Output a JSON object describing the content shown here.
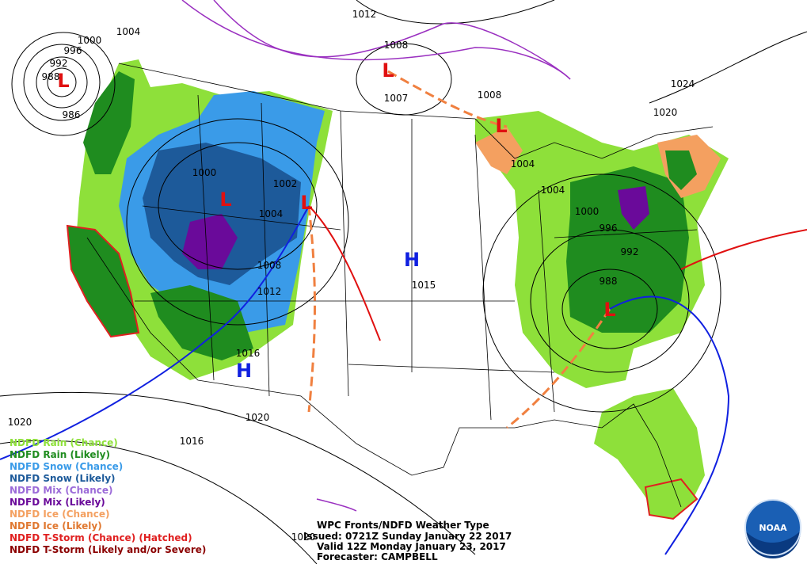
{
  "legend": [
    {
      "label": "NDFD Rain (Chance)",
      "color": "#8ee03a"
    },
    {
      "label": "NDFD Rain (Likely)",
      "color": "#1f8c1f"
    },
    {
      "label": "NDFD Snow (Chance)",
      "color": "#3a9be8"
    },
    {
      "label": "NDFD Snow (Likely)",
      "color": "#1d5a9a"
    },
    {
      "label": "NDFD Mix (Chance)",
      "color": "#9b6ad8"
    },
    {
      "label": "NDFD Mix (Likely)",
      "color": "#6a0a9a"
    },
    {
      "label": "NDFD Ice (Chance)",
      "color": "#f4a060"
    },
    {
      "label": "NDFD Ice (Likely)",
      "color": "#e07830"
    },
    {
      "label": "NDFD T-Storm (Chance) (Hatched)",
      "color": "#e02020"
    },
    {
      "label": "NDFD T-Storm (Likely and/or Severe)",
      "color": "#8b0000"
    }
  ],
  "isobar_labels": [
    "1000",
    "996",
    "992",
    "988",
    "986",
    "1004",
    "1012",
    "1008",
    "1007",
    "1008",
    "1024",
    "1020",
    "1000",
    "1002",
    "1004",
    "1008",
    "1012",
    "1016",
    "1015",
    "1004",
    "1004",
    "1000",
    "996",
    "992",
    "988",
    "1020",
    "1020",
    "1016",
    "1020"
  ],
  "pressure_centers": [
    {
      "label": "L",
      "color": "#e01010"
    },
    {
      "label": "L",
      "color": "#e01010"
    },
    {
      "label": "L",
      "color": "#e01010"
    },
    {
      "label": "L",
      "color": "#e01010"
    },
    {
      "label": "L",
      "color": "#e01010"
    },
    {
      "label": "L",
      "color": "#e01010"
    },
    {
      "label": "H",
      "color": "#1020e0"
    },
    {
      "label": "H",
      "color": "#1020e0"
    }
  ],
  "info": {
    "title": "WPC Fronts/NDFD Weather Type",
    "issued": "Issued: 0721Z Sunday January 22 2017",
    "valid": "Valid 12Z Monday January 23, 2017",
    "forecaster": "Forecaster: CAMPBELL"
  },
  "logo": "NOAA"
}
